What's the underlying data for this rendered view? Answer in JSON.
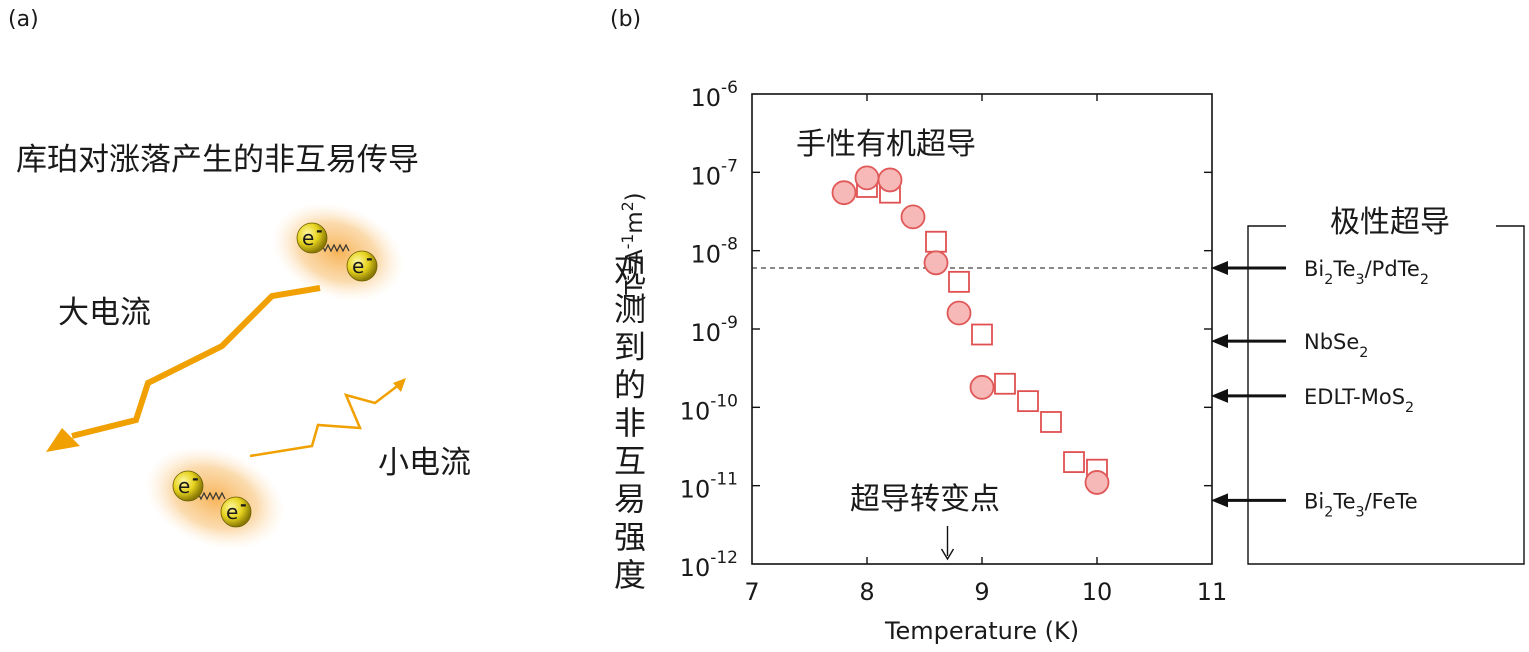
{
  "panel_a": {
    "label": "(a)",
    "title": "库珀对涨落产生的非互易传导",
    "large_current_label": "大电流",
    "small_current_label": "小电流",
    "electron_label": "e",
    "electron_charge": "-",
    "current_color": "#f0a000",
    "glow_color": "#f5b040",
    "electron_color": "#e8d020"
  },
  "panel_b": {
    "label": "(b)",
    "polar_title": "极性超导",
    "markers": [
      {
        "name": "bi2te3-pdte2",
        "value": 6e-09,
        "parts": [
          [
            "Bi",
            ""
          ],
          [
            "2",
            "sub"
          ],
          [
            "Te",
            ""
          ],
          [
            "3",
            "sub"
          ],
          [
            "/PdTe",
            ""
          ],
          [
            "2",
            "sub"
          ]
        ]
      },
      {
        "name": "nbse2",
        "value": 7e-10,
        "parts": [
          [
            "NbSe",
            ""
          ],
          [
            "2",
            "sub"
          ]
        ]
      },
      {
        "name": "edlt-mos2",
        "value": 1.4e-10,
        "parts": [
          [
            "EDLT-MoS",
            ""
          ],
          [
            "2",
            "sub"
          ]
        ]
      },
      {
        "name": "bi2te3-fete",
        "value": 6.5e-12,
        "parts": [
          [
            "Bi",
            ""
          ],
          [
            "2",
            "sub"
          ],
          [
            "Te",
            ""
          ],
          [
            "3",
            "sub"
          ],
          [
            "/FeTe",
            ""
          ]
        ]
      }
    ]
  },
  "chart_data": {
    "type": "scatter",
    "xlabel": "Temperature (K)",
    "ylabel": "观测到的非互易强度",
    "ylabel_unit_parts": [
      [
        "(T",
        ""
      ],
      [
        "-1",
        "sup"
      ],
      [
        "A",
        ""
      ],
      [
        "-1",
        "sup"
      ],
      [
        "m",
        ""
      ],
      [
        "2",
        "sup"
      ],
      [
        ")",
        ""
      ]
    ],
    "xlim": [
      7,
      11
    ],
    "ylim": [
      1e-12,
      1e-06
    ],
    "y_scale": "log",
    "x_ticks": [
      7,
      8,
      9,
      10,
      11
    ],
    "x_tick_labels": [
      "7",
      "8",
      "9",
      "10",
      "11"
    ],
    "y_ticks": [
      {
        "value": 1e-12,
        "base": "10",
        "exp": "-12"
      },
      {
        "value": 1e-11,
        "base": "10",
        "exp": "-11"
      },
      {
        "value": 1e-10,
        "base": "10",
        "exp": "-10"
      },
      {
        "value": 1e-09,
        "base": "10",
        "exp": "-9"
      },
      {
        "value": 1e-08,
        "base": "10",
        "exp": "-8"
      },
      {
        "value": 1e-07,
        "base": "10",
        "exp": "-7"
      },
      {
        "value": 1e-06,
        "base": "10",
        "exp": "-6"
      }
    ],
    "annotation_title": "手性有机超导",
    "annotation_transition": "超导转变点",
    "transition_x": 8.7,
    "reference_line_y": 6e-09,
    "series": [
      {
        "marker": "circle",
        "color": "#e05858",
        "fill": "#f7b8b8",
        "points": [
          [
            7.8,
            5.5e-08
          ],
          [
            8.0,
            8.5e-08
          ],
          [
            8.2,
            8e-08
          ],
          [
            8.4,
            2.7e-08
          ],
          [
            8.6,
            7e-09
          ],
          [
            8.8,
            1.6e-09
          ],
          [
            9.0,
            1.8e-10
          ],
          [
            10.0,
            1.1e-11
          ]
        ]
      },
      {
        "marker": "square",
        "color": "#e05050",
        "fill": "#ffffff",
        "points": [
          [
            8.0,
            6.5e-08
          ],
          [
            8.2,
            5.5e-08
          ],
          [
            8.6,
            1.3e-08
          ],
          [
            8.8,
            4e-09
          ],
          [
            9.0,
            8.5e-10
          ],
          [
            9.2,
            2e-10
          ],
          [
            9.4,
            1.2e-10
          ],
          [
            9.6,
            6.5e-11
          ],
          [
            9.8,
            2e-11
          ],
          [
            10.0,
            1.6e-11
          ]
        ]
      }
    ]
  }
}
